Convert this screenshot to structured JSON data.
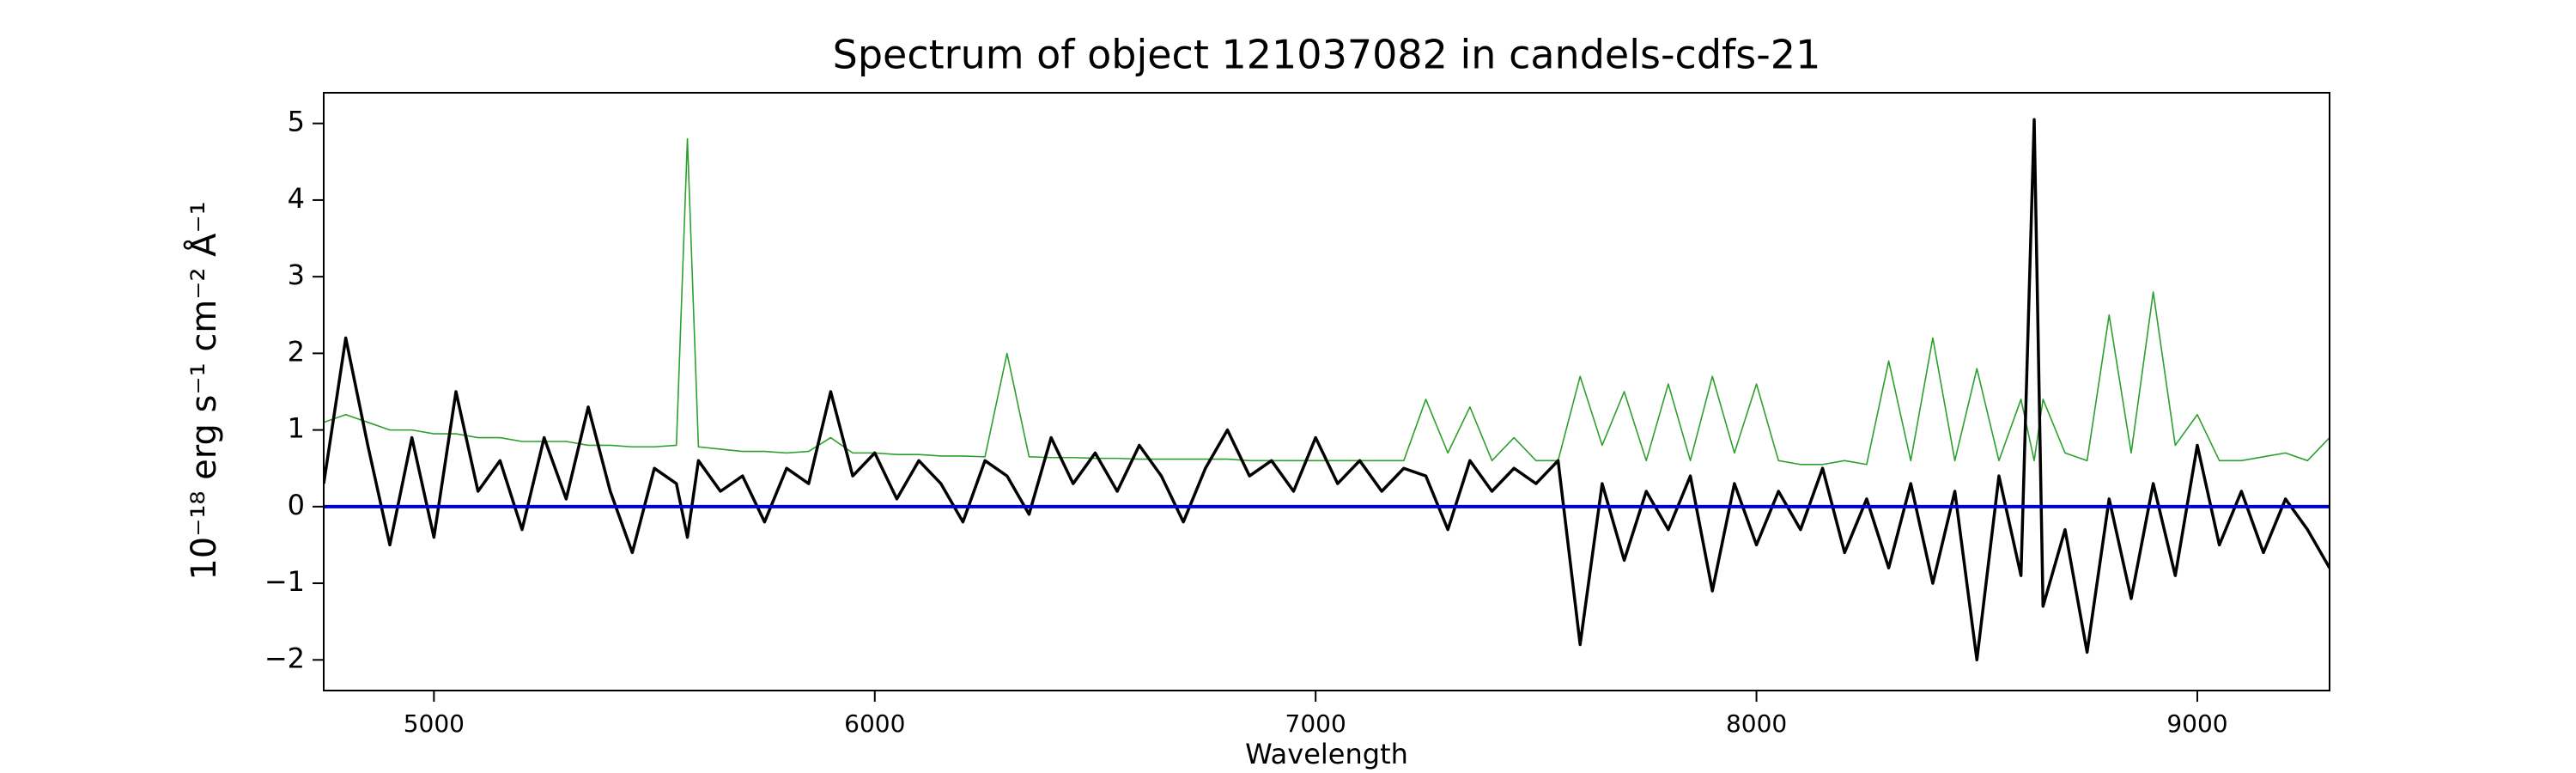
{
  "chart_data": {
    "type": "line",
    "title": "Spectrum of object 121037082 in candels-cdfs-21",
    "xlabel": "Wavelength",
    "ylabel": "10⁻¹⁸ erg s⁻¹ cm⁻² Å⁻¹",
    "x": [
      4750,
      4800,
      4850,
      4900,
      4950,
      5000,
      5050,
      5100,
      5150,
      5200,
      5250,
      5300,
      5350,
      5400,
      5450,
      5500,
      5550,
      5575,
      5600,
      5650,
      5700,
      5750,
      5800,
      5850,
      5900,
      5950,
      6000,
      6050,
      6100,
      6150,
      6200,
      6250,
      6300,
      6350,
      6400,
      6450,
      6500,
      6550,
      6600,
      6650,
      6700,
      6750,
      6800,
      6850,
      6900,
      6950,
      7000,
      7050,
      7100,
      7150,
      7200,
      7250,
      7300,
      7350,
      7400,
      7450,
      7500,
      7550,
      7600,
      7650,
      7700,
      7750,
      7800,
      7850,
      7900,
      7950,
      8000,
      8050,
      8100,
      8150,
      8200,
      8250,
      8300,
      8350,
      8400,
      8450,
      8500,
      8550,
      8600,
      8630,
      8650,
      8700,
      8750,
      8800,
      8850,
      8900,
      8950,
      9000,
      9050,
      9100,
      9150,
      9200,
      9250,
      9300
    ],
    "series": [
      {
        "color": "#2ca02c",
        "values": [
          1.1,
          1.2,
          1.1,
          1.0,
          1.0,
          0.95,
          0.95,
          0.9,
          0.9,
          0.85,
          0.85,
          0.85,
          0.8,
          0.8,
          0.78,
          0.78,
          0.8,
          4.8,
          0.78,
          0.75,
          0.72,
          0.72,
          0.7,
          0.72,
          0.9,
          0.7,
          0.7,
          0.68,
          0.68,
          0.66,
          0.66,
          0.65,
          2.0,
          0.65,
          0.64,
          0.64,
          0.63,
          0.63,
          0.62,
          0.62,
          0.62,
          0.62,
          0.62,
          0.6,
          0.6,
          0.6,
          0.6,
          0.6,
          0.6,
          0.6,
          0.6,
          1.4,
          0.7,
          1.3,
          0.6,
          0.9,
          0.6,
          0.6,
          1.7,
          0.8,
          1.5,
          0.6,
          1.6,
          0.6,
          1.7,
          0.7,
          1.6,
          0.6,
          0.55,
          0.55,
          0.6,
          0.55,
          1.9,
          0.6,
          2.2,
          0.6,
          1.8,
          0.6,
          1.4,
          0.6,
          1.4,
          0.7,
          0.6,
          2.5,
          0.7,
          2.8,
          0.8,
          1.2,
          0.6,
          0.6,
          0.65,
          0.7,
          0.6,
          0.9
        ]
      },
      {
        "color": "#000000",
        "values": [
          0.3,
          2.2,
          0.8,
          -0.5,
          0.9,
          -0.4,
          1.5,
          0.2,
          0.6,
          -0.3,
          0.9,
          0.1,
          1.3,
          0.2,
          -0.6,
          0.5,
          0.3,
          -0.4,
          0.6,
          0.2,
          0.4,
          -0.2,
          0.5,
          0.3,
          1.5,
          0.4,
          0.7,
          0.1,
          0.6,
          0.3,
          -0.2,
          0.6,
          0.4,
          -0.1,
          0.9,
          0.3,
          0.7,
          0.2,
          0.8,
          0.4,
          -0.2,
          0.5,
          1.0,
          0.4,
          0.6,
          0.2,
          0.9,
          0.3,
          0.6,
          0.2,
          0.5,
          0.4,
          -0.3,
          0.6,
          0.2,
          0.5,
          0.3,
          0.6,
          -1.8,
          0.3,
          -0.7,
          0.2,
          -0.3,
          0.4,
          -1.1,
          0.3,
          -0.5,
          0.2,
          -0.3,
          0.5,
          -0.6,
          0.1,
          -0.8,
          0.3,
          -1.0,
          0.2,
          -2.0,
          0.4,
          -0.9,
          5.05,
          -1.3,
          -0.3,
          -1.9,
          0.1,
          -1.2,
          0.3,
          -0.9,
          0.8,
          -0.5,
          0.2,
          -0.6,
          0.1,
          -0.3,
          -0.8
        ]
      }
    ],
    "hline": {
      "value": 0,
      "color": "#0000cc"
    },
    "xlim": [
      4750,
      9300
    ],
    "xticks": [
      5000,
      6000,
      7000,
      8000,
      9000
    ],
    "ylim": [
      -2.4,
      5.4
    ],
    "yticks": [
      {
        "value": -2,
        "label": "−2"
      },
      {
        "value": -1,
        "label": "−1"
      },
      0,
      1,
      2,
      3,
      4,
      5
    ],
    "grid": false
  }
}
